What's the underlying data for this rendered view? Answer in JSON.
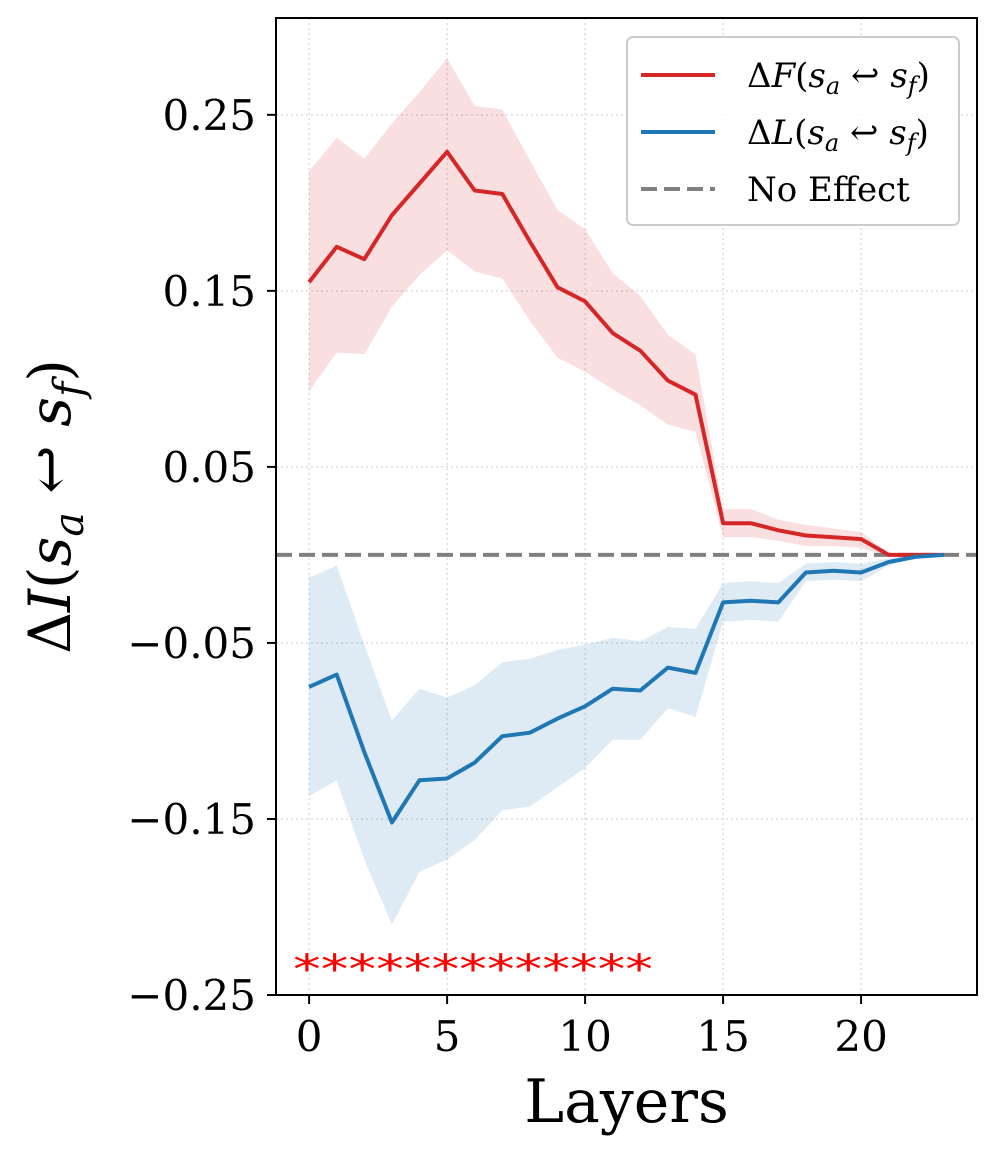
{
  "chart_data": {
    "type": "line",
    "xlabel": "Layers",
    "ylabel": "ΔI(s_a ↩ s_f)",
    "xlim": [
      -1.2,
      24.2
    ],
    "ylim": [
      -0.25,
      0.305
    ],
    "xticks": [
      0,
      5,
      10,
      15,
      20
    ],
    "xtick_labels": [
      "0",
      "5",
      "10",
      "15",
      "20"
    ],
    "yticks": [
      -0.25,
      -0.15,
      -0.05,
      0.05,
      0.15,
      0.25
    ],
    "ytick_labels": [
      "−0.25",
      "−0.15",
      "−0.05",
      "0.05",
      "0.15",
      "0.25"
    ],
    "grid": true,
    "legend_position": "top-right",
    "series": [
      {
        "name": "ΔF(s_a ↩ s_f)",
        "color": "#d62728",
        "x": [
          0,
          1,
          2,
          3,
          4,
          5,
          6,
          7,
          8,
          9,
          10,
          11,
          12,
          13,
          14,
          15,
          16,
          17,
          18,
          19,
          20,
          21,
          22,
          23
        ],
        "values": [
          0.155,
          0.175,
          0.168,
          0.193,
          0.211,
          0.229,
          0.207,
          0.205,
          0.178,
          0.152,
          0.144,
          0.126,
          0.116,
          0.099,
          0.091,
          0.018,
          0.018,
          0.014,
          0.011,
          0.01,
          0.009,
          0.0,
          0.0,
          0.0
        ],
        "lower": [
          0.093,
          0.115,
          0.114,
          0.141,
          0.159,
          0.173,
          0.161,
          0.157,
          0.133,
          0.112,
          0.104,
          0.094,
          0.085,
          0.074,
          0.07,
          0.01,
          0.01,
          0.008,
          0.005,
          0.005,
          0.004,
          -0.001,
          -0.001,
          -0.001
        ],
        "upper": [
          0.218,
          0.237,
          0.225,
          0.245,
          0.263,
          0.282,
          0.255,
          0.253,
          0.224,
          0.196,
          0.185,
          0.16,
          0.147,
          0.125,
          0.114,
          0.026,
          0.026,
          0.02,
          0.017,
          0.015,
          0.013,
          0.001,
          0.001,
          0.001
        ]
      },
      {
        "name": "ΔL(s_a ↩ s_f)",
        "color": "#1f77b4",
        "x": [
          0,
          1,
          2,
          3,
          4,
          5,
          6,
          7,
          8,
          9,
          10,
          11,
          12,
          13,
          14,
          15,
          16,
          17,
          18,
          19,
          20,
          21,
          22,
          23
        ],
        "values": [
          -0.075,
          -0.068,
          -0.112,
          -0.152,
          -0.128,
          -0.127,
          -0.118,
          -0.103,
          -0.101,
          -0.093,
          -0.086,
          -0.076,
          -0.077,
          -0.064,
          -0.067,
          -0.027,
          -0.026,
          -0.027,
          -0.01,
          -0.009,
          -0.01,
          -0.004,
          -0.001,
          0.0
        ],
        "lower": [
          -0.137,
          -0.128,
          -0.173,
          -0.21,
          -0.18,
          -0.173,
          -0.162,
          -0.145,
          -0.143,
          -0.132,
          -0.121,
          -0.105,
          -0.105,
          -0.087,
          -0.092,
          -0.038,
          -0.037,
          -0.038,
          -0.015,
          -0.014,
          -0.015,
          -0.006,
          -0.002,
          -0.001
        ],
        "upper": [
          -0.013,
          -0.006,
          -0.051,
          -0.094,
          -0.076,
          -0.081,
          -0.074,
          -0.061,
          -0.059,
          -0.054,
          -0.051,
          -0.047,
          -0.049,
          -0.041,
          -0.042,
          -0.016,
          -0.015,
          -0.016,
          -0.005,
          -0.004,
          -0.005,
          -0.002,
          0.0,
          0.001
        ]
      }
    ],
    "reference_line": {
      "name": "No Effect",
      "y": 0,
      "color": "#808080",
      "style": "dashed"
    },
    "annotation": {
      "text": "*************",
      "color": "#ff0000"
    }
  }
}
